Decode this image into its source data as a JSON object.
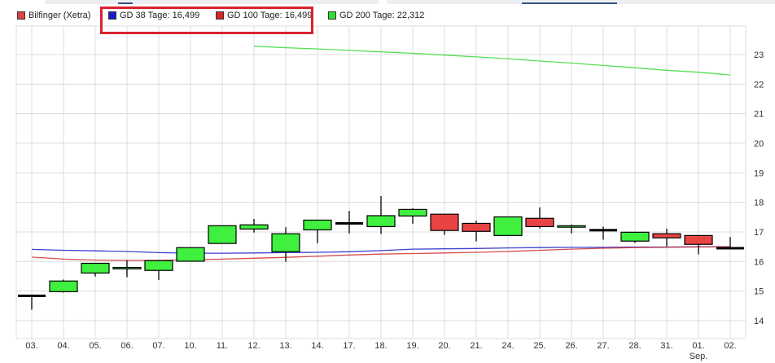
{
  "legend": {
    "items": [
      {
        "label": "Bilfinger (Xetra)",
        "color": "#e04040"
      },
      {
        "label": "GD 38 Tage: 16,499",
        "color": "#1a1acc"
      },
      {
        "label": "GD 100 Tage: 16,499",
        "color": "#dd2222"
      },
      {
        "label": "GD 200 Tage: 22,312",
        "color": "#33dd33"
      }
    ]
  },
  "chart_data": {
    "type": "candlestick",
    "title": "",
    "ylim": [
      13.4,
      23.9
    ],
    "y_ticks": [
      14,
      15,
      16,
      17,
      18,
      19,
      20,
      21,
      22,
      23
    ],
    "y_axis_side": "right",
    "grid": true,
    "legend_position": "top-left",
    "up_color": "#3ff03f",
    "down_color": "#e84444",
    "categories": [
      "03.",
      "04.",
      "05.",
      "06.",
      "07.",
      "10.",
      "11.",
      "12.",
      "13.",
      "14.",
      "17.",
      "18.",
      "19.",
      "20.",
      "21.",
      "24.",
      "25.",
      "26.",
      "27.",
      "28.",
      "31.",
      "01.",
      "02."
    ],
    "category_sublabels": {
      "01.": "Sep."
    },
    "ohlc": [
      {
        "o": 14.84,
        "h": 14.84,
        "l": 14.37,
        "c": 14.84
      },
      {
        "o": 14.98,
        "h": 15.39,
        "l": 14.95,
        "c": 15.34
      },
      {
        "o": 15.61,
        "h": 15.94,
        "l": 15.49,
        "c": 15.94
      },
      {
        "o": 15.75,
        "h": 16.04,
        "l": 15.47,
        "c": 15.8
      },
      {
        "o": 15.7,
        "h": 16.03,
        "l": 15.38,
        "c": 16.03
      },
      {
        "o": 16.01,
        "h": 16.47,
        "l": 16.01,
        "c": 16.47
      },
      {
        "o": 16.61,
        "h": 17.21,
        "l": 16.61,
        "c": 17.21
      },
      {
        "o": 17.1,
        "h": 17.44,
        "l": 16.98,
        "c": 17.24
      },
      {
        "o": 16.33,
        "h": 17.16,
        "l": 15.99,
        "c": 16.94
      },
      {
        "o": 17.07,
        "h": 17.4,
        "l": 16.62,
        "c": 17.4
      },
      {
        "o": 17.29,
        "h": 17.71,
        "l": 16.95,
        "c": 17.29
      },
      {
        "o": 17.18,
        "h": 18.21,
        "l": 16.93,
        "c": 17.55
      },
      {
        "o": 17.54,
        "h": 17.8,
        "l": 17.28,
        "c": 17.76
      },
      {
        "o": 17.6,
        "h": 17.6,
        "l": 16.9,
        "c": 17.05
      },
      {
        "o": 17.29,
        "h": 17.38,
        "l": 16.68,
        "c": 17.02
      },
      {
        "o": 16.88,
        "h": 17.51,
        "l": 16.88,
        "c": 17.51
      },
      {
        "o": 17.46,
        "h": 17.83,
        "l": 17.12,
        "c": 17.18
      },
      {
        "o": 17.16,
        "h": 17.25,
        "l": 16.95,
        "c": 17.21
      },
      {
        "o": 17.06,
        "h": 17.18,
        "l": 16.74,
        "c": 17.06
      },
      {
        "o": 16.69,
        "h": 16.99,
        "l": 16.63,
        "c": 16.99
      },
      {
        "o": 16.94,
        "h": 17.11,
        "l": 16.51,
        "c": 16.8
      },
      {
        "o": 16.88,
        "h": 16.88,
        "l": 16.24,
        "c": 16.58
      },
      {
        "o": 16.45,
        "h": 16.83,
        "l": 16.45,
        "c": 16.45
      }
    ],
    "series": [
      {
        "name": "GD 38 Tage",
        "color": "#2a2acc",
        "values": [
          16.41,
          16.38,
          16.36,
          16.34,
          16.3,
          16.28,
          16.28,
          16.29,
          16.3,
          16.31,
          16.33,
          16.37,
          16.42,
          16.43,
          16.44,
          16.46,
          16.47,
          16.48,
          16.48,
          16.49,
          16.49,
          16.5,
          16.499
        ]
      },
      {
        "name": "GD 100 Tage",
        "color": "#d23a3a",
        "values": [
          16.15,
          16.08,
          16.05,
          16.04,
          16.04,
          16.06,
          16.08,
          16.11,
          16.14,
          16.18,
          16.22,
          16.25,
          16.27,
          16.29,
          16.31,
          16.34,
          16.38,
          16.42,
          16.45,
          16.47,
          16.48,
          16.49,
          16.499
        ]
      },
      {
        "name": "GD 200 Tage",
        "color": "#44dd44",
        "values": [
          null,
          null,
          null,
          null,
          null,
          null,
          null,
          23.28,
          23.23,
          23.19,
          23.14,
          23.09,
          23.04,
          22.98,
          22.92,
          22.86,
          22.78,
          22.71,
          22.63,
          22.55,
          22.47,
          22.4,
          22.312
        ]
      }
    ]
  }
}
